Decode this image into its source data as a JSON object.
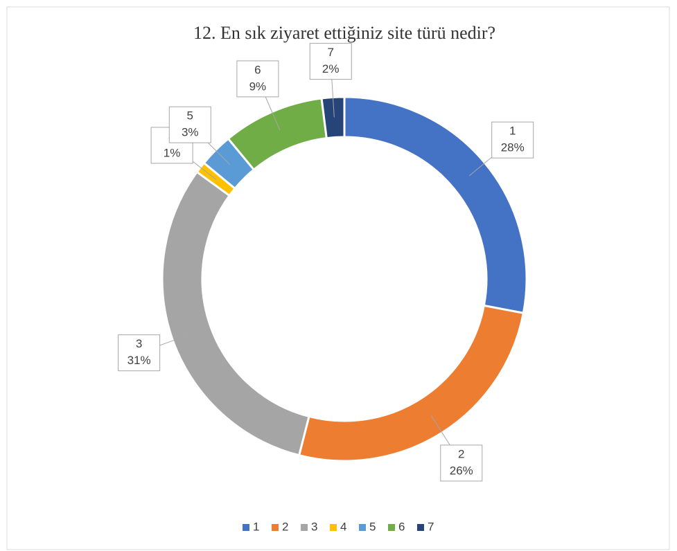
{
  "chart_data": {
    "type": "doughnut",
    "title": "12. En sık ziyaret ettiğiniz site türü nedir?",
    "categories": [
      "1",
      "2",
      "3",
      "4",
      "5",
      "6",
      "7"
    ],
    "values": [
      28,
      26,
      31,
      1,
      3,
      9,
      2
    ],
    "value_labels": [
      "28%",
      "26%",
      "31%",
      "1%",
      "3%",
      "9%",
      "2%"
    ],
    "colors": [
      "#4472c4",
      "#ed7d31",
      "#a5a5a5",
      "#ffc000",
      "#5b9bd5",
      "#70ad47",
      "#264478"
    ],
    "legend": "bottom"
  }
}
